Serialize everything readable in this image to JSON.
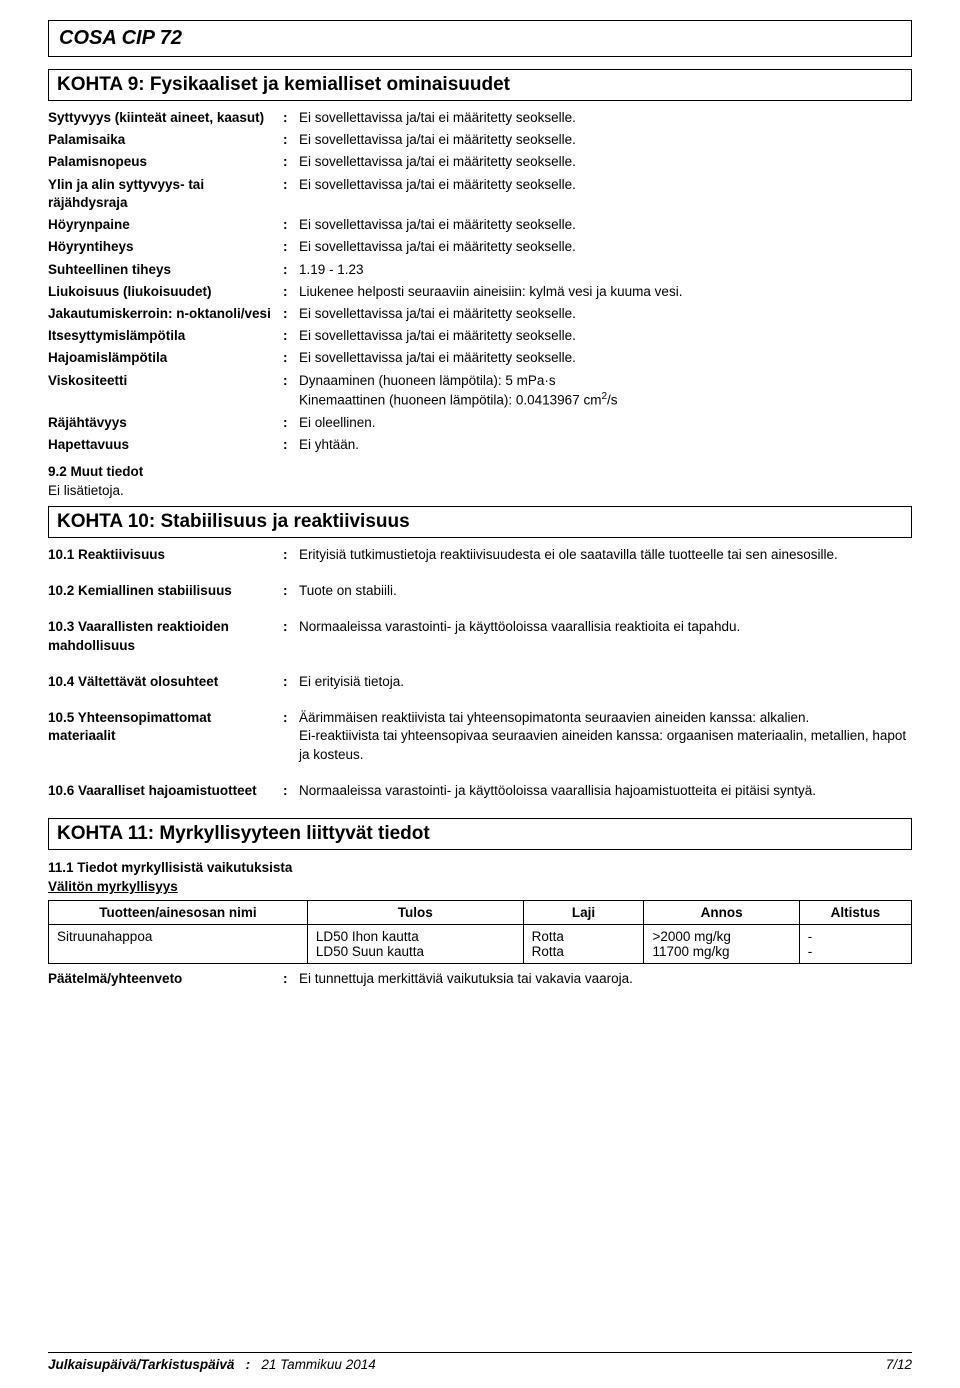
{
  "document_title": "COSA CIP 72",
  "section9": {
    "heading": "KOHTA 9: Fysikaaliset ja kemialliset ominaisuudet",
    "rows": [
      {
        "label": "Syttyvyys (kiinteät aineet, kaasut)",
        "value": "Ei sovellettavissa ja/tai ei määritetty seokselle."
      },
      {
        "label": "Palamisaika",
        "value": "Ei sovellettavissa ja/tai ei määritetty seokselle."
      },
      {
        "label": "Palamisnopeus",
        "value": "Ei sovellettavissa ja/tai ei määritetty seokselle."
      },
      {
        "label": "Ylin ja alin syttyvyys- tai räjähdysraja",
        "value": "Ei sovellettavissa ja/tai ei määritetty seokselle."
      },
      {
        "label": "Höyrynpaine",
        "value": "Ei sovellettavissa ja/tai ei määritetty seokselle."
      },
      {
        "label": "Höyryntiheys",
        "value": "Ei sovellettavissa ja/tai ei määritetty seokselle."
      },
      {
        "label": "Suhteellinen tiheys",
        "value": "1.19 - 1.23"
      },
      {
        "label": "Liukoisuus (liukoisuudet)",
        "value": "Liukenee helposti seuraaviin aineisiin: kylmä vesi ja kuuma vesi."
      },
      {
        "label": "Jakautumiskerroin: n-oktanoli/vesi",
        "value": "Ei sovellettavissa ja/tai ei määritetty seokselle."
      },
      {
        "label": "Itsesyttymislämpötila",
        "value": "Ei sovellettavissa ja/tai ei määritetty seokselle."
      },
      {
        "label": "Hajoamislämpötila",
        "value": "Ei sovellettavissa ja/tai ei määritetty seokselle."
      },
      {
        "label": "Viskositeetti",
        "value_html": "Dynaaminen (huoneen lämpötila): 5 mPa·s<br>Kinemaattinen (huoneen lämpötila): 0.0413967 cm<sup>2</sup>/s"
      },
      {
        "label": "Räjähtävyys",
        "value": "Ei oleellinen."
      },
      {
        "label": "Hapettavuus",
        "value": "Ei yhtään."
      }
    ],
    "sub_heading": "9.2 Muut tiedot",
    "sub_text": "Ei lisätietoja."
  },
  "section10": {
    "heading": "KOHTA 10: Stabiilisuus ja reaktiivisuus",
    "rows": [
      {
        "label": "10.1 Reaktiivisuus",
        "value": "Erityisiä tutkimustietoja reaktiivisuudesta ei ole saatavilla tälle tuotteelle tai sen ainesosille."
      },
      {
        "label": "10.2 Kemiallinen stabiilisuus",
        "value": "Tuote on stabiili."
      },
      {
        "label": "10.3 Vaarallisten reaktioiden mahdollisuus",
        "value": "Normaaleissa varastointi- ja käyttöoloissa vaarallisia reaktioita ei tapahdu."
      },
      {
        "label": "10.4 Vältettävät olosuhteet",
        "value": "Ei erityisiä tietoja."
      },
      {
        "label": "10.5 Yhteensopimattomat materiaalit",
        "value": "Äärimmäisen reaktiivista tai yhteensopimatonta seuraavien aineiden kanssa: alkalien.\nEi-reaktiivista tai yhteensopivaa seuraavien aineiden kanssa: orgaanisen materiaalin, metallien, hapot ja kosteus."
      },
      {
        "label": "10.6 Vaaralliset hajoamistuotteet",
        "value": "Normaaleissa varastointi- ja käyttöoloissa vaarallisia hajoamistuotteita ei pitäisi syntyä."
      }
    ]
  },
  "section11": {
    "heading": "KOHTA 11: Myrkyllisyyteen liittyvät tiedot",
    "sub_heading": "11.1 Tiedot myrkyllisistä vaikutuksista",
    "underline": "Välitön myrkyllisyys",
    "table": {
      "columns": [
        "Tuotteen/ainesosan nimi",
        "Tulos",
        "Laji",
        "Annos",
        "Altistus"
      ],
      "body": {
        "name": "Sitruunahappoa",
        "lines": [
          {
            "tulos": "LD50 Ihon kautta",
            "laji": "Rotta",
            "annos": ">2000 mg/kg",
            "altistus": "-"
          },
          {
            "tulos": "LD50 Suun kautta",
            "laji": "Rotta",
            "annos": "11700 mg/kg",
            "altistus": "-"
          }
        ]
      }
    },
    "conclusion": {
      "label": "Päätelmä/yhteenveto",
      "value": "Ei tunnettuja merkittäviä vaikutuksia tai vakavia vaaroja."
    }
  },
  "footer": {
    "left_label": "Julkaisupäivä/Tarkistuspäivä",
    "mid_value": "21 Tammikuu 2014",
    "right_value": "7/12"
  }
}
